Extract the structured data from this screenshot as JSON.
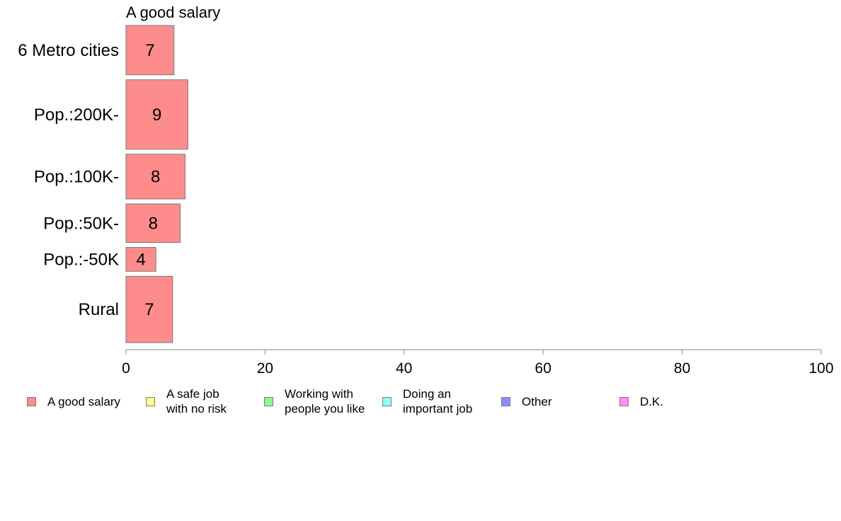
{
  "chart_data": {
    "type": "bar",
    "orientation": "horizontal",
    "panel_title": "A good salary",
    "categories": [
      "6 Metro cities",
      "Pop.:200K-",
      "Pop.:100K-",
      "Pop.:50K-",
      "Pop.:-50K",
      "Rural"
    ],
    "series": [
      {
        "name": "A good salary",
        "values": [
          6.9,
          8.9,
          8.5,
          7.8,
          4.3,
          6.7
        ],
        "value_labels": [
          "7",
          "9",
          "8",
          "8",
          "4",
          "7"
        ],
        "color": "#ff8c8c"
      }
    ],
    "category_weights": [
      6.4,
      9.0,
      5.8,
      5.0,
      3.1,
      8.6
    ],
    "xlim": [
      0,
      100
    ],
    "xticks": [
      "0",
      "20",
      "40",
      "60",
      "80",
      "100"
    ],
    "grid": false,
    "legend_position": "bottom"
  },
  "legend": [
    {
      "label": "A good salary",
      "color": "#ff8c8c"
    },
    {
      "label": "A safe job\nwith no risk",
      "color": "#ffff8c"
    },
    {
      "label": "Working with\npeople you like",
      "color": "#8cff8c"
    },
    {
      "label": "Doing an\nimportant job",
      "color": "#8cffff"
    },
    {
      "label": "Other",
      "color": "#8c8cff"
    },
    {
      "label": "D.K.",
      "color": "#ff8cff"
    }
  ]
}
